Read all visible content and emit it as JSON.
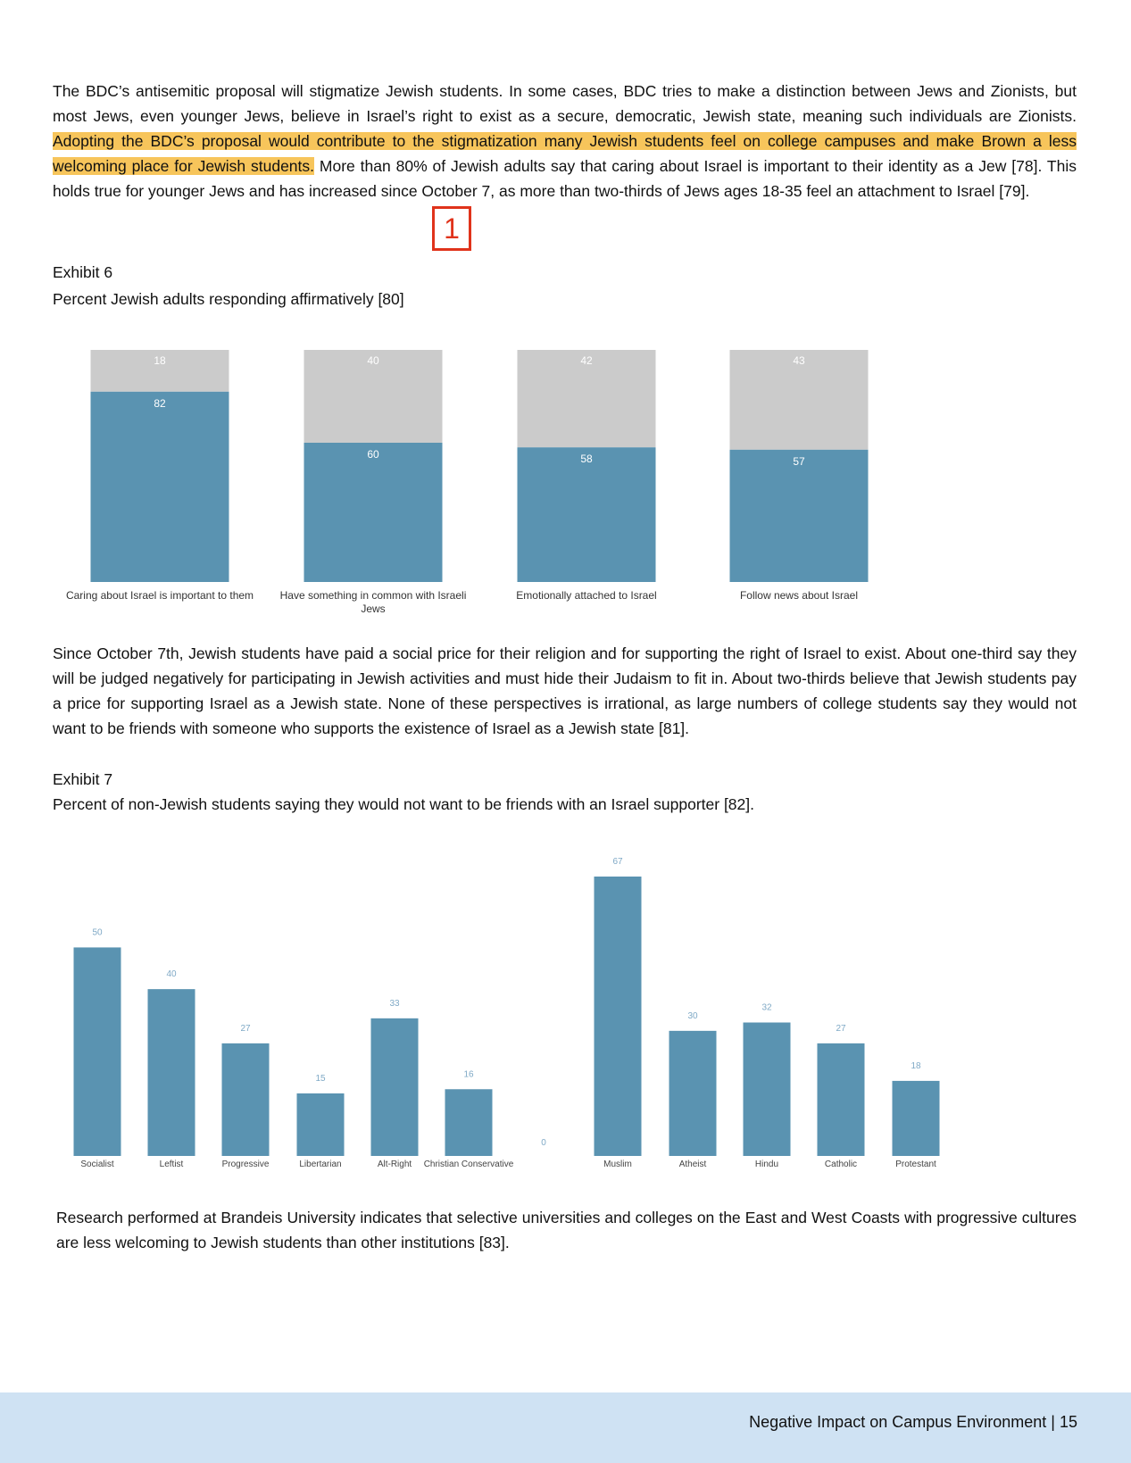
{
  "intro": {
    "before": "The BDC’s antisemitic proposal will stigmatize Jewish students. In some cases, BDC tries to make a distinction between Jews and Zionists, but most Jews, even younger Jews, believe in Israel’s right to exist as a secure, democratic, Jewish state, meaning such individuals are Zionists. ",
    "highlight": "Adopting the BDC’s proposal would contribute to the stigmatization many Jewish students feel on college campuses and make Brown a less welcoming place for Jewish students.",
    "after": " More than 80% of Jewish adults say that caring about Israel is important to their identity as a Jew [78]. This holds true for younger Jews and has increased since October 7, as more than two-thirds of Jews ages 18-35 feel an attachment to Israel [79]."
  },
  "annotation": "1",
  "exhibit6": {
    "label": "Exhibit 6",
    "caption": "Percent Jewish adults responding affirmatively [80]"
  },
  "paragraph2": "Since October 7th, Jewish students have paid a social price for their religion and for supporting the right of Israel to exist. About one-third say they will be judged negatively for participating in Jewish activities and must hide their Judaism to fit in. About two-thirds believe that Jewish students pay a price for supporting Israel as a Jewish state. None of these perspectives is irrational, as large numbers of college students say they would not want to be friends with someone who supports the existence of Israel as a Jewish state [81].",
  "exhibit7": {
    "label": "Exhibit 7",
    "caption": "Percent of non-Jewish students saying they would not want to be friends with an Israel supporter [82]."
  },
  "paragraph3": "Research performed at Brandeis University indicates that selective universities and colleges on the East and West Coasts with progressive cultures are less welcoming to Jewish students than other institutions [83].",
  "footer": "Negative Impact on Campus Environment | 15",
  "chart_data": [
    {
      "type": "bar",
      "stacked": true,
      "title": "",
      "categories": [
        "Caring about Israel is important to them",
        "Have something in common with Israeli Jews",
        "Emotionally attached to Israel",
        "Follow news about Israel"
      ],
      "series": [
        {
          "color": "#5a93b1",
          "values": [
            82,
            60,
            58,
            57
          ]
        },
        {
          "color": "#cbcbcb",
          "values": [
            18,
            40,
            42,
            43
          ]
        }
      ],
      "ylim": [
        0,
        100
      ],
      "grid": false
    },
    {
      "type": "bar",
      "title": "",
      "categories": [
        "Socialist",
        "Leftist",
        "Progressive",
        "Libertarian",
        "Alt-Right",
        "Christian Conservative",
        "",
        "Muslim",
        "Atheist",
        "Hindu",
        "Catholic",
        "Protestant"
      ],
      "values": [
        50,
        40,
        27,
        15,
        33,
        16,
        0,
        67,
        30,
        32,
        27,
        18
      ],
      "color": "#5a93b1",
      "ylim": [
        0,
        67
      ],
      "grid": false
    }
  ]
}
